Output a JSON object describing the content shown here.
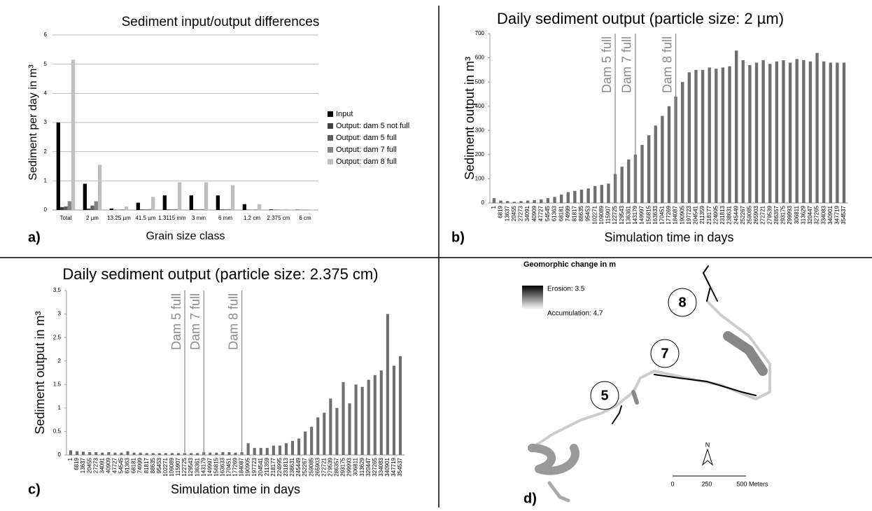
{
  "chart_data": [
    {
      "type": "grouped_bar",
      "panel_label": "a)",
      "title": "Sediment input/output differences",
      "x_label": "Grain size class",
      "y_label": "Sediment per day in m³",
      "categories": [
        "Total",
        "2 µm",
        "13.25 µm",
        "41.5 µm",
        "1.3115 mm",
        "3 mm",
        "6 mm",
        "1.2 cm",
        "2.375 cm",
        "6 cm"
      ],
      "series": [
        {
          "name": "Input",
          "color": "#000000",
          "values": [
            3.0,
            0.9,
            0.05,
            0.25,
            0.5,
            0.5,
            0.5,
            0.2,
            0.02,
            0.01
          ]
        },
        {
          "name": "Output: dam 5 not full",
          "color": "#404040",
          "values": [
            0.1,
            0.05,
            0.01,
            0.02,
            0.02,
            0.02,
            0.02,
            0.01,
            0.01,
            0.005
          ]
        },
        {
          "name": "Output: dam 5 full",
          "color": "#5e5e5e",
          "values": [
            0.12,
            0.15,
            0.01,
            0.02,
            0.02,
            0.02,
            0.02,
            0.01,
            0.01,
            0.005
          ]
        },
        {
          "name": "Output: dam 7 full",
          "color": "#858585",
          "values": [
            0.3,
            0.3,
            0.02,
            0.03,
            0.03,
            0.03,
            0.03,
            0.02,
            0.01,
            0.005
          ]
        },
        {
          "name": "Output: dam 8 full",
          "color": "#bfbfbf",
          "values": [
            5.15,
            1.55,
            0.12,
            0.45,
            0.95,
            0.95,
            0.85,
            0.2,
            0.03,
            0.01
          ]
        }
      ],
      "ylim": [
        0,
        6
      ],
      "yticks": [
        0,
        1,
        2,
        3,
        4,
        5,
        6
      ],
      "grid": true,
      "legend": "right"
    },
    {
      "type": "bar",
      "panel_label": "b)",
      "title": "Daily sediment output (particle size: 2 µm)",
      "x_label": "Simulation time in days",
      "y_label": "Sediment output in m³",
      "color": "#6e6e6e",
      "x": [
        1,
        6819,
        13637,
        20455,
        27273,
        34091,
        40909,
        47727,
        54545,
        61363,
        68181,
        74999,
        81817,
        88635,
        95453,
        102271,
        109089,
        115907,
        122725,
        129543,
        136361,
        143179,
        149997,
        156815,
        163633,
        170451,
        177269,
        184087,
        190905,
        197723,
        204541,
        211359,
        218177,
        224995,
        231813,
        238631,
        245449,
        252267,
        259085,
        265903,
        272721,
        279539,
        286357,
        293175,
        299993,
        306811,
        313629,
        320447,
        327265,
        334083,
        340901,
        347719,
        354537
      ],
      "values": [
        20,
        10,
        8,
        5,
        8,
        10,
        12,
        15,
        20,
        25,
        35,
        45,
        50,
        55,
        60,
        70,
        75,
        80,
        120,
        150,
        180,
        200,
        240,
        280,
        320,
        360,
        400,
        440,
        500,
        540,
        550,
        550,
        560,
        555,
        560,
        565,
        630,
        590,
        570,
        580,
        590,
        575,
        585,
        590,
        580,
        595,
        590,
        585,
        620,
        585,
        580,
        580,
        580
      ],
      "xlim": [
        1,
        354537
      ],
      "ylim": [
        0,
        700
      ],
      "yticks": [
        0,
        100,
        200,
        300,
        400,
        500,
        600,
        700
      ],
      "grid": false,
      "annotations": [
        {
          "text": "Dam 5 full",
          "x": 122725
        },
        {
          "text": "Dam 7 full",
          "x": 143179
        },
        {
          "text": "Dam 8 full",
          "x": 184087
        }
      ]
    },
    {
      "type": "bar",
      "panel_label": "c)",
      "title": "Daily sediment output (particle size: 2.375 cm)",
      "x_label": "Simulation time in days",
      "y_label": "Sediment output in m³",
      "color": "#6e6e6e",
      "x": [
        1,
        6819,
        13637,
        20455,
        27273,
        34091,
        40909,
        47727,
        54545,
        61363,
        68181,
        74999,
        81817,
        88635,
        95453,
        102271,
        109089,
        115907,
        122725,
        129543,
        136361,
        143179,
        149997,
        156815,
        163633,
        170451,
        177269,
        184087,
        190905,
        197723,
        204541,
        211359,
        218177,
        224995,
        231813,
        238631,
        245449,
        252267,
        259085,
        265903,
        272721,
        279539,
        286357,
        293175,
        299993,
        306811,
        313629,
        320447,
        327265,
        334083,
        340901,
        347719,
        354537
      ],
      "values": [
        0.1,
        0.08,
        0.07,
        0.06,
        0.06,
        0.05,
        0.06,
        0.05,
        0.05,
        0.08,
        0.05,
        0.05,
        0.04,
        0.04,
        0.04,
        0.04,
        0.04,
        0.04,
        0.04,
        0.04,
        0.04,
        0.06,
        0.05,
        0.05,
        0.06,
        0.06,
        0.05,
        0.06,
        0.25,
        0.15,
        0.15,
        0.15,
        0.2,
        0.2,
        0.25,
        0.3,
        0.35,
        0.5,
        0.6,
        0.8,
        0.9,
        1.2,
        1.0,
        1.55,
        1.1,
        1.5,
        1.45,
        1.6,
        1.7,
        1.8,
        3.0,
        1.9,
        2.1
      ],
      "xlim": [
        1,
        354537
      ],
      "ylim": [
        0,
        3.5
      ],
      "yticks": [
        0,
        0.5,
        1,
        1.5,
        2,
        2.5,
        3,
        3.5
      ],
      "grid": false,
      "annotations": [
        {
          "text": "Dam 5 full",
          "x": 122725
        },
        {
          "text": "Dam 7 full",
          "x": 143179
        },
        {
          "text": "Dam 8 full",
          "x": 184087
        }
      ]
    }
  ],
  "map": {
    "panel_label": "d)",
    "title": "Geomorphic change in m",
    "erosion": "Erosion: 3.5",
    "accumulation": "Accumulation: 4.7",
    "dams": [
      "8",
      "7",
      "5"
    ],
    "north": "N",
    "scale": [
      "0",
      "250",
      "500 Meters"
    ]
  }
}
